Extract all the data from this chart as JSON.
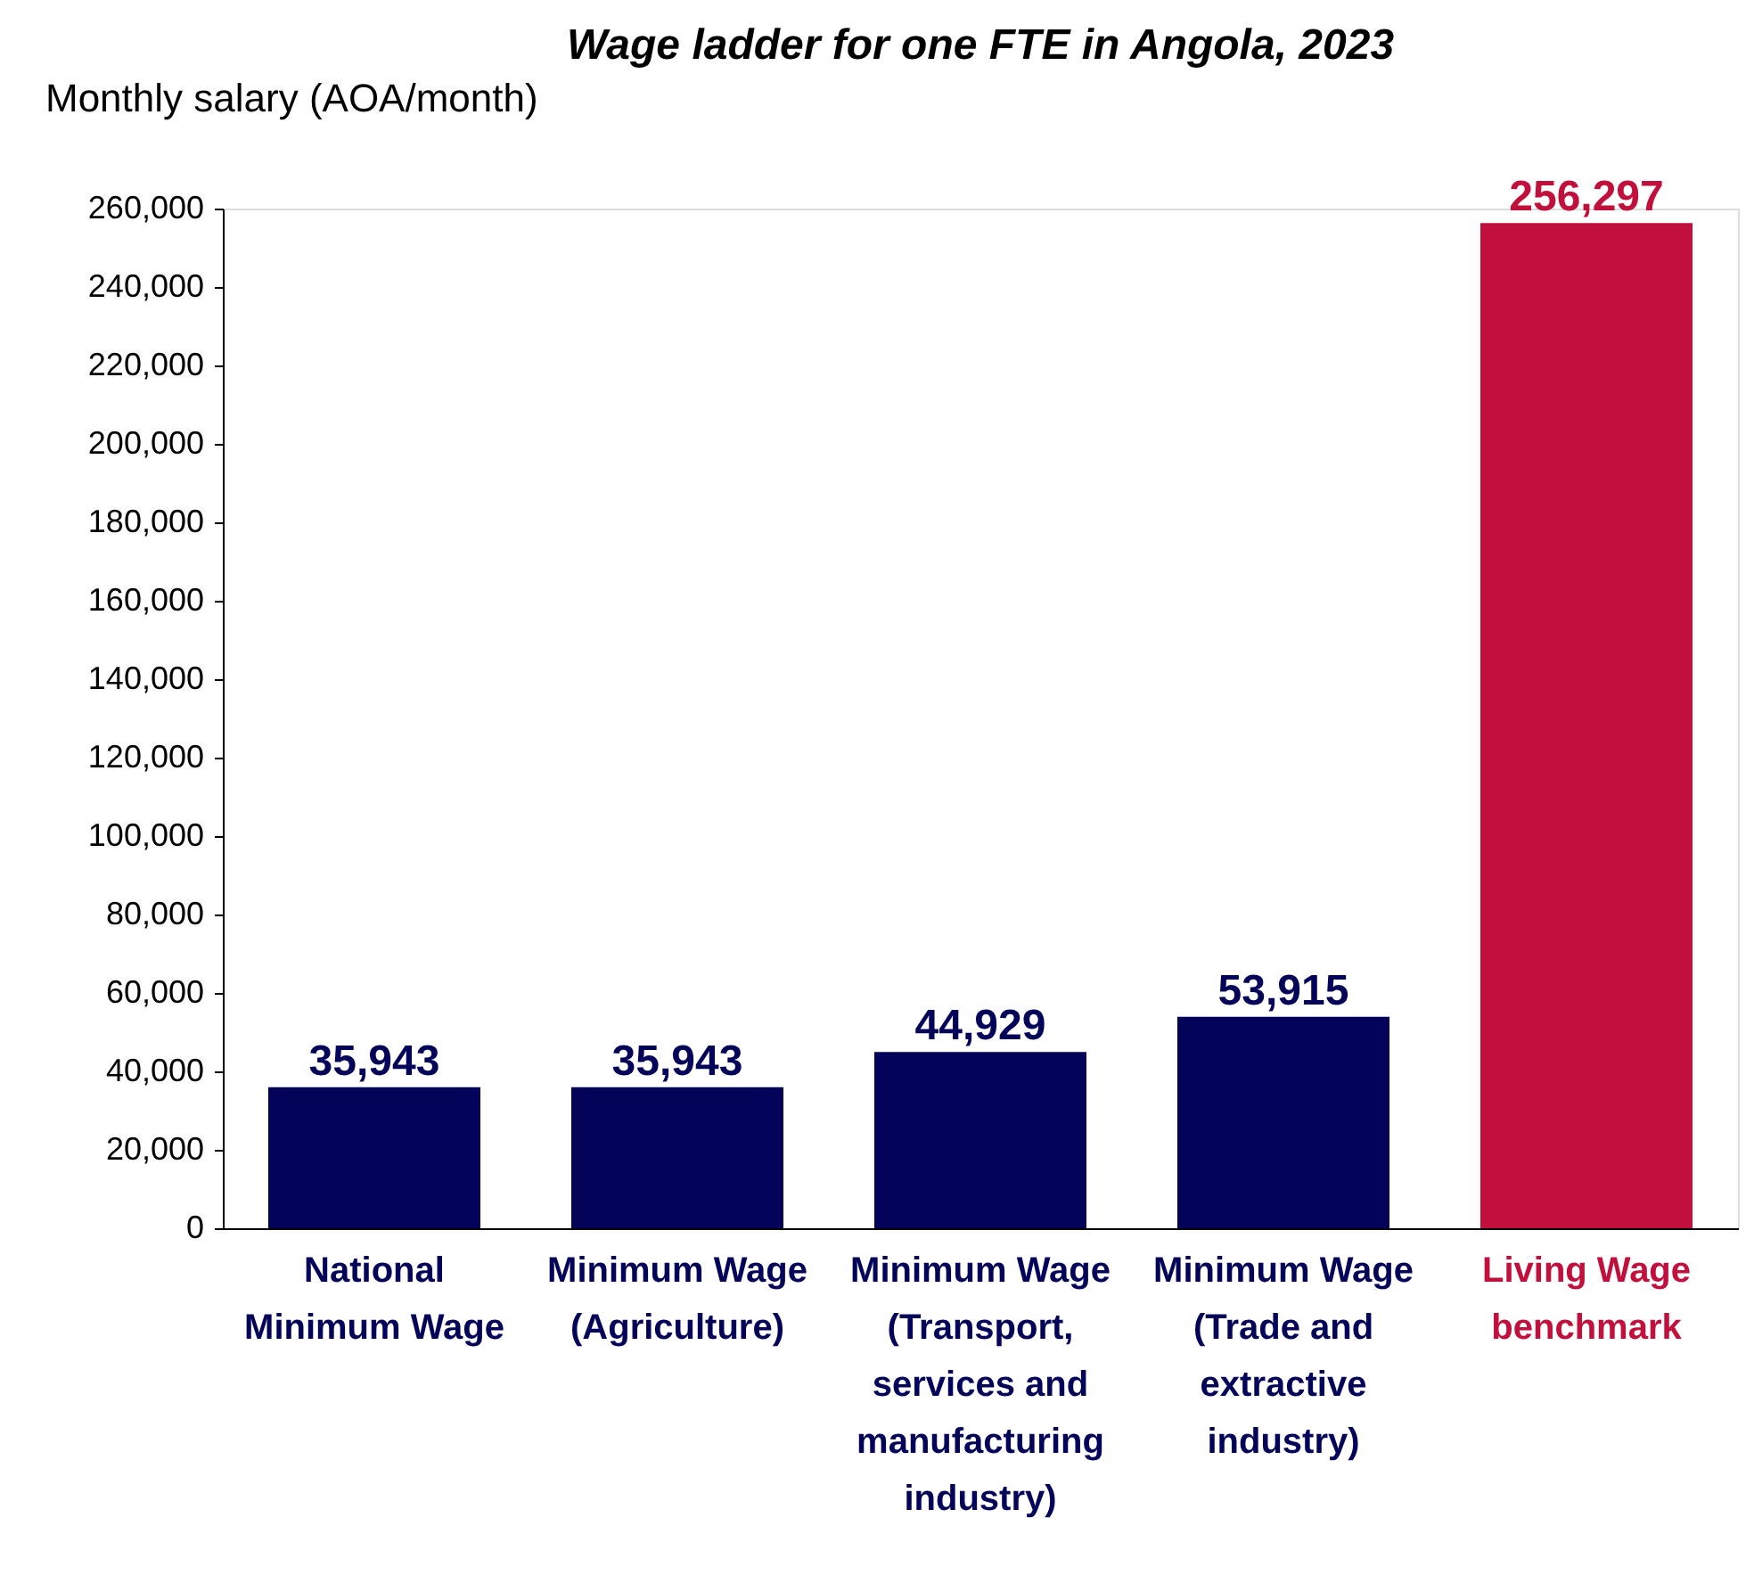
{
  "chart_data": {
    "type": "bar",
    "title": "Wage ladder for one FTE in Angola, 2023",
    "ylabel": "Monthly salary (AOA/month)",
    "categories": [
      "National Minimum Wage",
      "Minimum Wage (Agriculture)",
      "Minimum Wage (Transport, services and manufacturing industry)",
      "Minimum Wage (Trade and extractive industry)",
      "Living Wage benchmark"
    ],
    "values": [
      35943,
      35943,
      44929,
      53915,
      256297
    ],
    "colors": [
      "#03035a",
      "#03035a",
      "#03035a",
      "#03035a",
      "#c2103d"
    ],
    "ylim": [
      0,
      260000
    ],
    "yticks": [
      0,
      {
        "value": 20000,
        "label": "20,000"
      },
      {
        "value": 40000,
        "label": "40,000"
      },
      {
        "value": 60000,
        "label": "60,000"
      },
      {
        "value": 80000,
        "label": "80,000"
      },
      {
        "value": 100000,
        "label": "100,000"
      },
      {
        "value": 120000,
        "label": "120,000"
      },
      {
        "value": 140000,
        "label": "140,000"
      },
      {
        "value": 160000,
        "label": "160,000"
      },
      {
        "value": 180000,
        "label": "180,000"
      },
      {
        "value": 200000,
        "label": "200,000"
      },
      {
        "value": 220000,
        "label": "220,000"
      },
      {
        "value": 240000,
        "label": "240,000"
      },
      {
        "value": 260000,
        "label": "260,000"
      }
    ],
    "value_labels": [
      "35,943",
      "35,943",
      "44,929",
      "53,915",
      "256,297"
    ],
    "grid": false
  }
}
